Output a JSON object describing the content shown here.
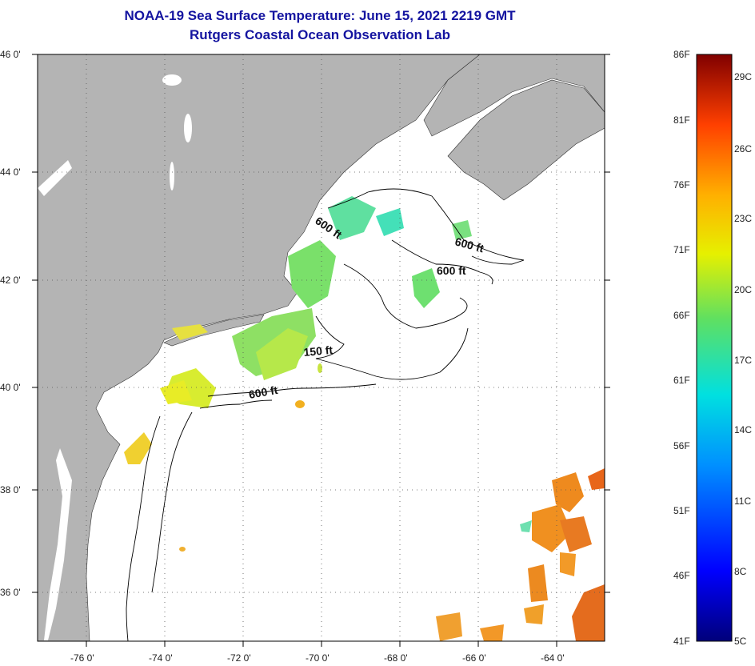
{
  "title": "NOAA-19 Sea Surface Temperature:  June 15, 2021 2219 GMT",
  "subtitle": "Rutgers Coastal Ocean Observation Lab",
  "axes": {
    "lat_labels": [
      "46 0'",
      "44 0'",
      "42 0'",
      "40 0'",
      "38 0'",
      "36 0'"
    ],
    "lon_labels": [
      "-76 0'",
      "-74 0'",
      "-72 0'",
      "-70 0'",
      "-68 0'",
      "-66 0'",
      "-64 0'"
    ]
  },
  "contours": [
    "600 ft",
    "600 ft",
    "600 ft",
    "600 ft",
    "150 ft"
  ],
  "colorbar": {
    "fahrenheit": [
      "86F",
      "81F",
      "76F",
      "71F",
      "66F",
      "61F",
      "56F",
      "51F",
      "46F",
      "41F"
    ],
    "celsius": [
      "29C",
      "26C",
      "23C",
      "20C",
      "17C",
      "14C",
      "11C",
      "8C",
      "5C"
    ]
  },
  "colors": {
    "title": "#1414a0",
    "land": "#b4b4b4",
    "water": "#ffffff"
  }
}
